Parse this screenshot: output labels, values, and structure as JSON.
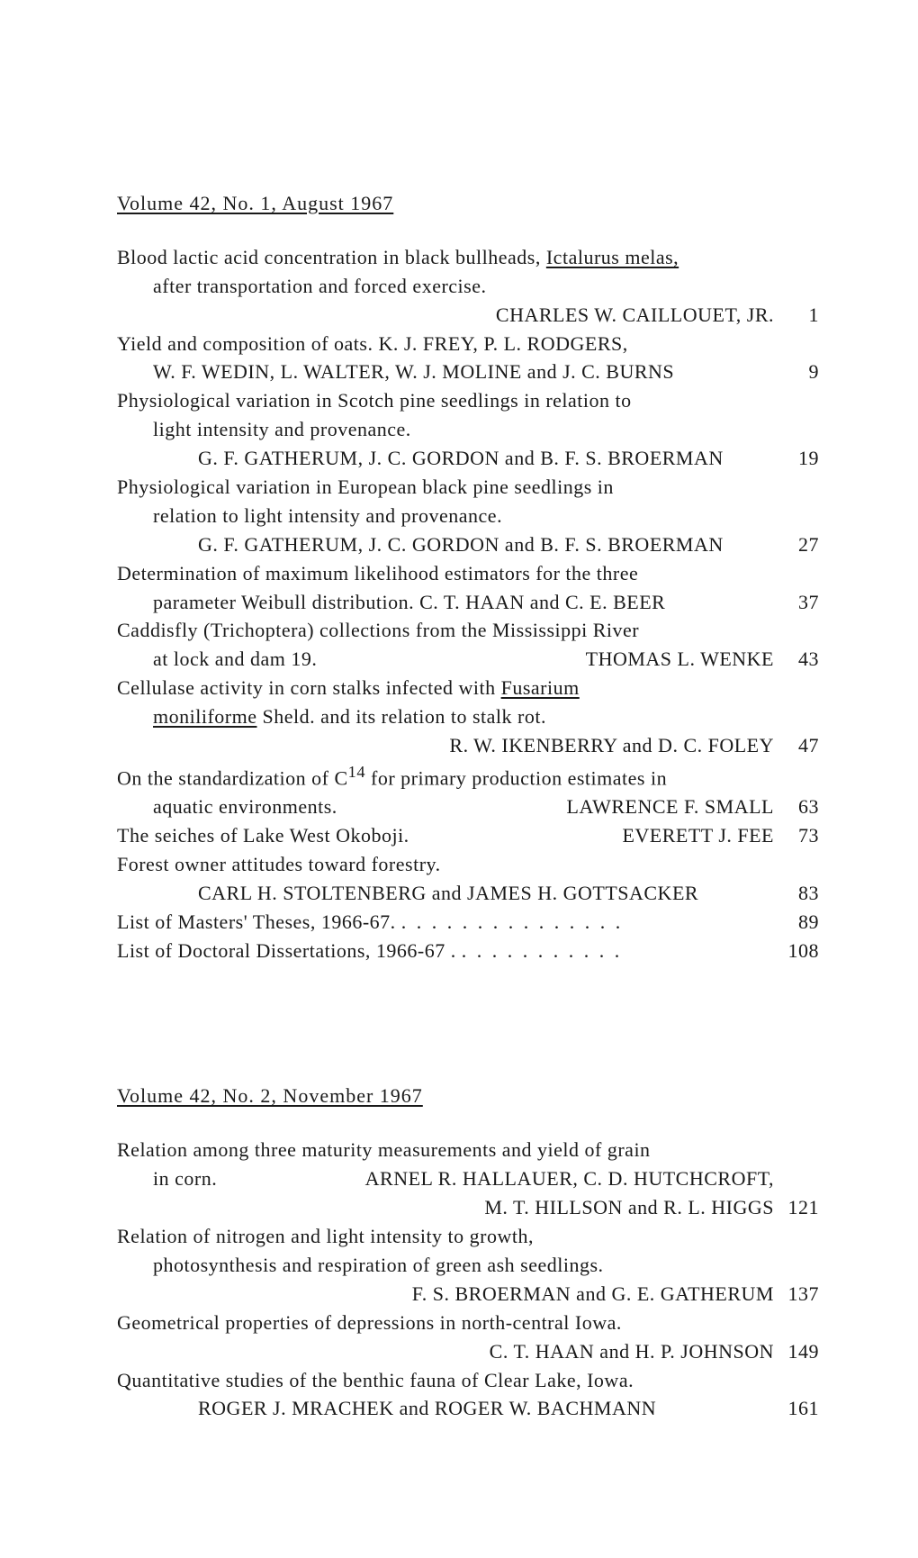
{
  "volume1": {
    "header": "Volume 42, No. 1, August 1967",
    "entries": [
      {
        "lines": [
          {
            "text": "Blood lactic acid concentration in black bullheads, ",
            "trailing_underline": "Ictalurus melas,",
            "page": ""
          },
          {
            "text": "after transportation and forced exercise.",
            "indent": true,
            "page": ""
          },
          {
            "text": "CHARLES W. CAILLOUET, JR.",
            "align_right": true,
            "page": "1"
          }
        ]
      },
      {
        "lines": [
          {
            "text": "Yield and composition of oats.         K. J. FREY, P. L. RODGERS,",
            "page": ""
          },
          {
            "text": "W. F. WEDIN, L. WALTER, W. J. MOLINE and J. C. BURNS",
            "indent": true,
            "page": "9"
          }
        ]
      },
      {
        "lines": [
          {
            "text": "Physiological variation in Scotch pine seedlings in relation to",
            "page": ""
          },
          {
            "text": "light intensity and provenance.",
            "indent": true,
            "page": ""
          },
          {
            "text": "G. F. GATHERUM, J. C. GORDON and B. F. S. BROERMAN",
            "indent_author": true,
            "page": "19"
          }
        ]
      },
      {
        "lines": [
          {
            "text": "Physiological variation in European black pine seedlings in",
            "page": ""
          },
          {
            "text": "relation to light intensity and provenance.",
            "indent": true,
            "page": ""
          },
          {
            "text": "G. F. GATHERUM, J. C. GORDON and B. F. S. BROERMAN",
            "indent_author": true,
            "page": "27"
          }
        ]
      },
      {
        "lines": [
          {
            "text": "Determination of maximum likelihood estimators for the three",
            "page": ""
          },
          {
            "text": "parameter Weibull distribution.     C. T. HAAN and C. E. BEER",
            "indent": true,
            "page": "37"
          }
        ]
      },
      {
        "lines": [
          {
            "text": "Caddisfly (Trichoptera) collections from the Mississippi River",
            "page": ""
          },
          {
            "text_left": "at lock and dam 19.",
            "text_right": "THOMAS L. WENKE",
            "indent": true,
            "split": true,
            "page": "43"
          }
        ]
      },
      {
        "lines": [
          {
            "text": "Cellulase activity in corn stalks infected with ",
            "trailing_underline": "Fusarium",
            "page": ""
          },
          {
            "leading_underline": "moniliforme",
            "text": " Sheld. and its relation to stalk rot.",
            "indent": true,
            "page": ""
          },
          {
            "text": "R. W. IKENBERRY and D. C. FOLEY",
            "align_right": true,
            "page": "47"
          }
        ]
      },
      {
        "lines": [
          {
            "html": "On the standardization of C<sup>14</sup> for primary production estimates in",
            "page": ""
          },
          {
            "text_left": "aquatic environments.",
            "text_right": "LAWRENCE F. SMALL",
            "indent": true,
            "split": true,
            "page": "63"
          }
        ]
      },
      {
        "lines": [
          {
            "text_left": "The seiches of Lake West Okoboji.",
            "text_right": "EVERETT J. FEE",
            "split": true,
            "page": "73"
          }
        ]
      },
      {
        "lines": [
          {
            "text": "Forest owner attitudes toward forestry.",
            "page": ""
          },
          {
            "text": "CARL H. STOLTENBERG and JAMES H. GOTTSACKER",
            "indent_author": true,
            "page": "83"
          }
        ]
      },
      {
        "lines": [
          {
            "text": "List of Masters' Theses, 1966-67. ",
            "dots": ". . . . . . . . . . . . . . .",
            "page": "89"
          }
        ]
      },
      {
        "lines": [
          {
            "text": "List of Doctoral Dissertations, 1966-67 . ",
            "dots": ". . . . . . . . . . .",
            "page": "108"
          }
        ]
      }
    ]
  },
  "volume2": {
    "header": "Volume 42, No. 2, November 1967",
    "entries": [
      {
        "lines": [
          {
            "text": "Relation among three maturity measurements and yield of grain",
            "page": ""
          },
          {
            "text_left": "in corn.",
            "text_right": "ARNEL R. HALLAUER, C. D. HUTCHCROFT,",
            "indent": true,
            "split": true,
            "page": ""
          },
          {
            "text": "M. T. HILLSON and R. L. HIGGS",
            "align_right": true,
            "page": "121"
          }
        ]
      },
      {
        "lines": [
          {
            "text": "Relation of nitrogen and light intensity to growth,",
            "page": ""
          },
          {
            "text": "photosynthesis and respiration of green ash seedlings.",
            "indent": true,
            "page": ""
          },
          {
            "text": "F. S. BROERMAN and G. E. GATHERUM",
            "align_right": true,
            "page": "137"
          }
        ]
      },
      {
        "lines": [
          {
            "text": "Geometrical properties of depressions in north-central Iowa.",
            "page": ""
          },
          {
            "text": "C. T. HAAN and H. P. JOHNSON",
            "align_right": true,
            "page": "149"
          }
        ]
      },
      {
        "lines": [
          {
            "text": "Quantitative studies of the benthic fauna of Clear Lake, Iowa.",
            "page": ""
          },
          {
            "text": "ROGER J. MRACHEK and ROGER W. BACHMANN",
            "indent_author": true,
            "page": "161"
          }
        ]
      }
    ]
  }
}
